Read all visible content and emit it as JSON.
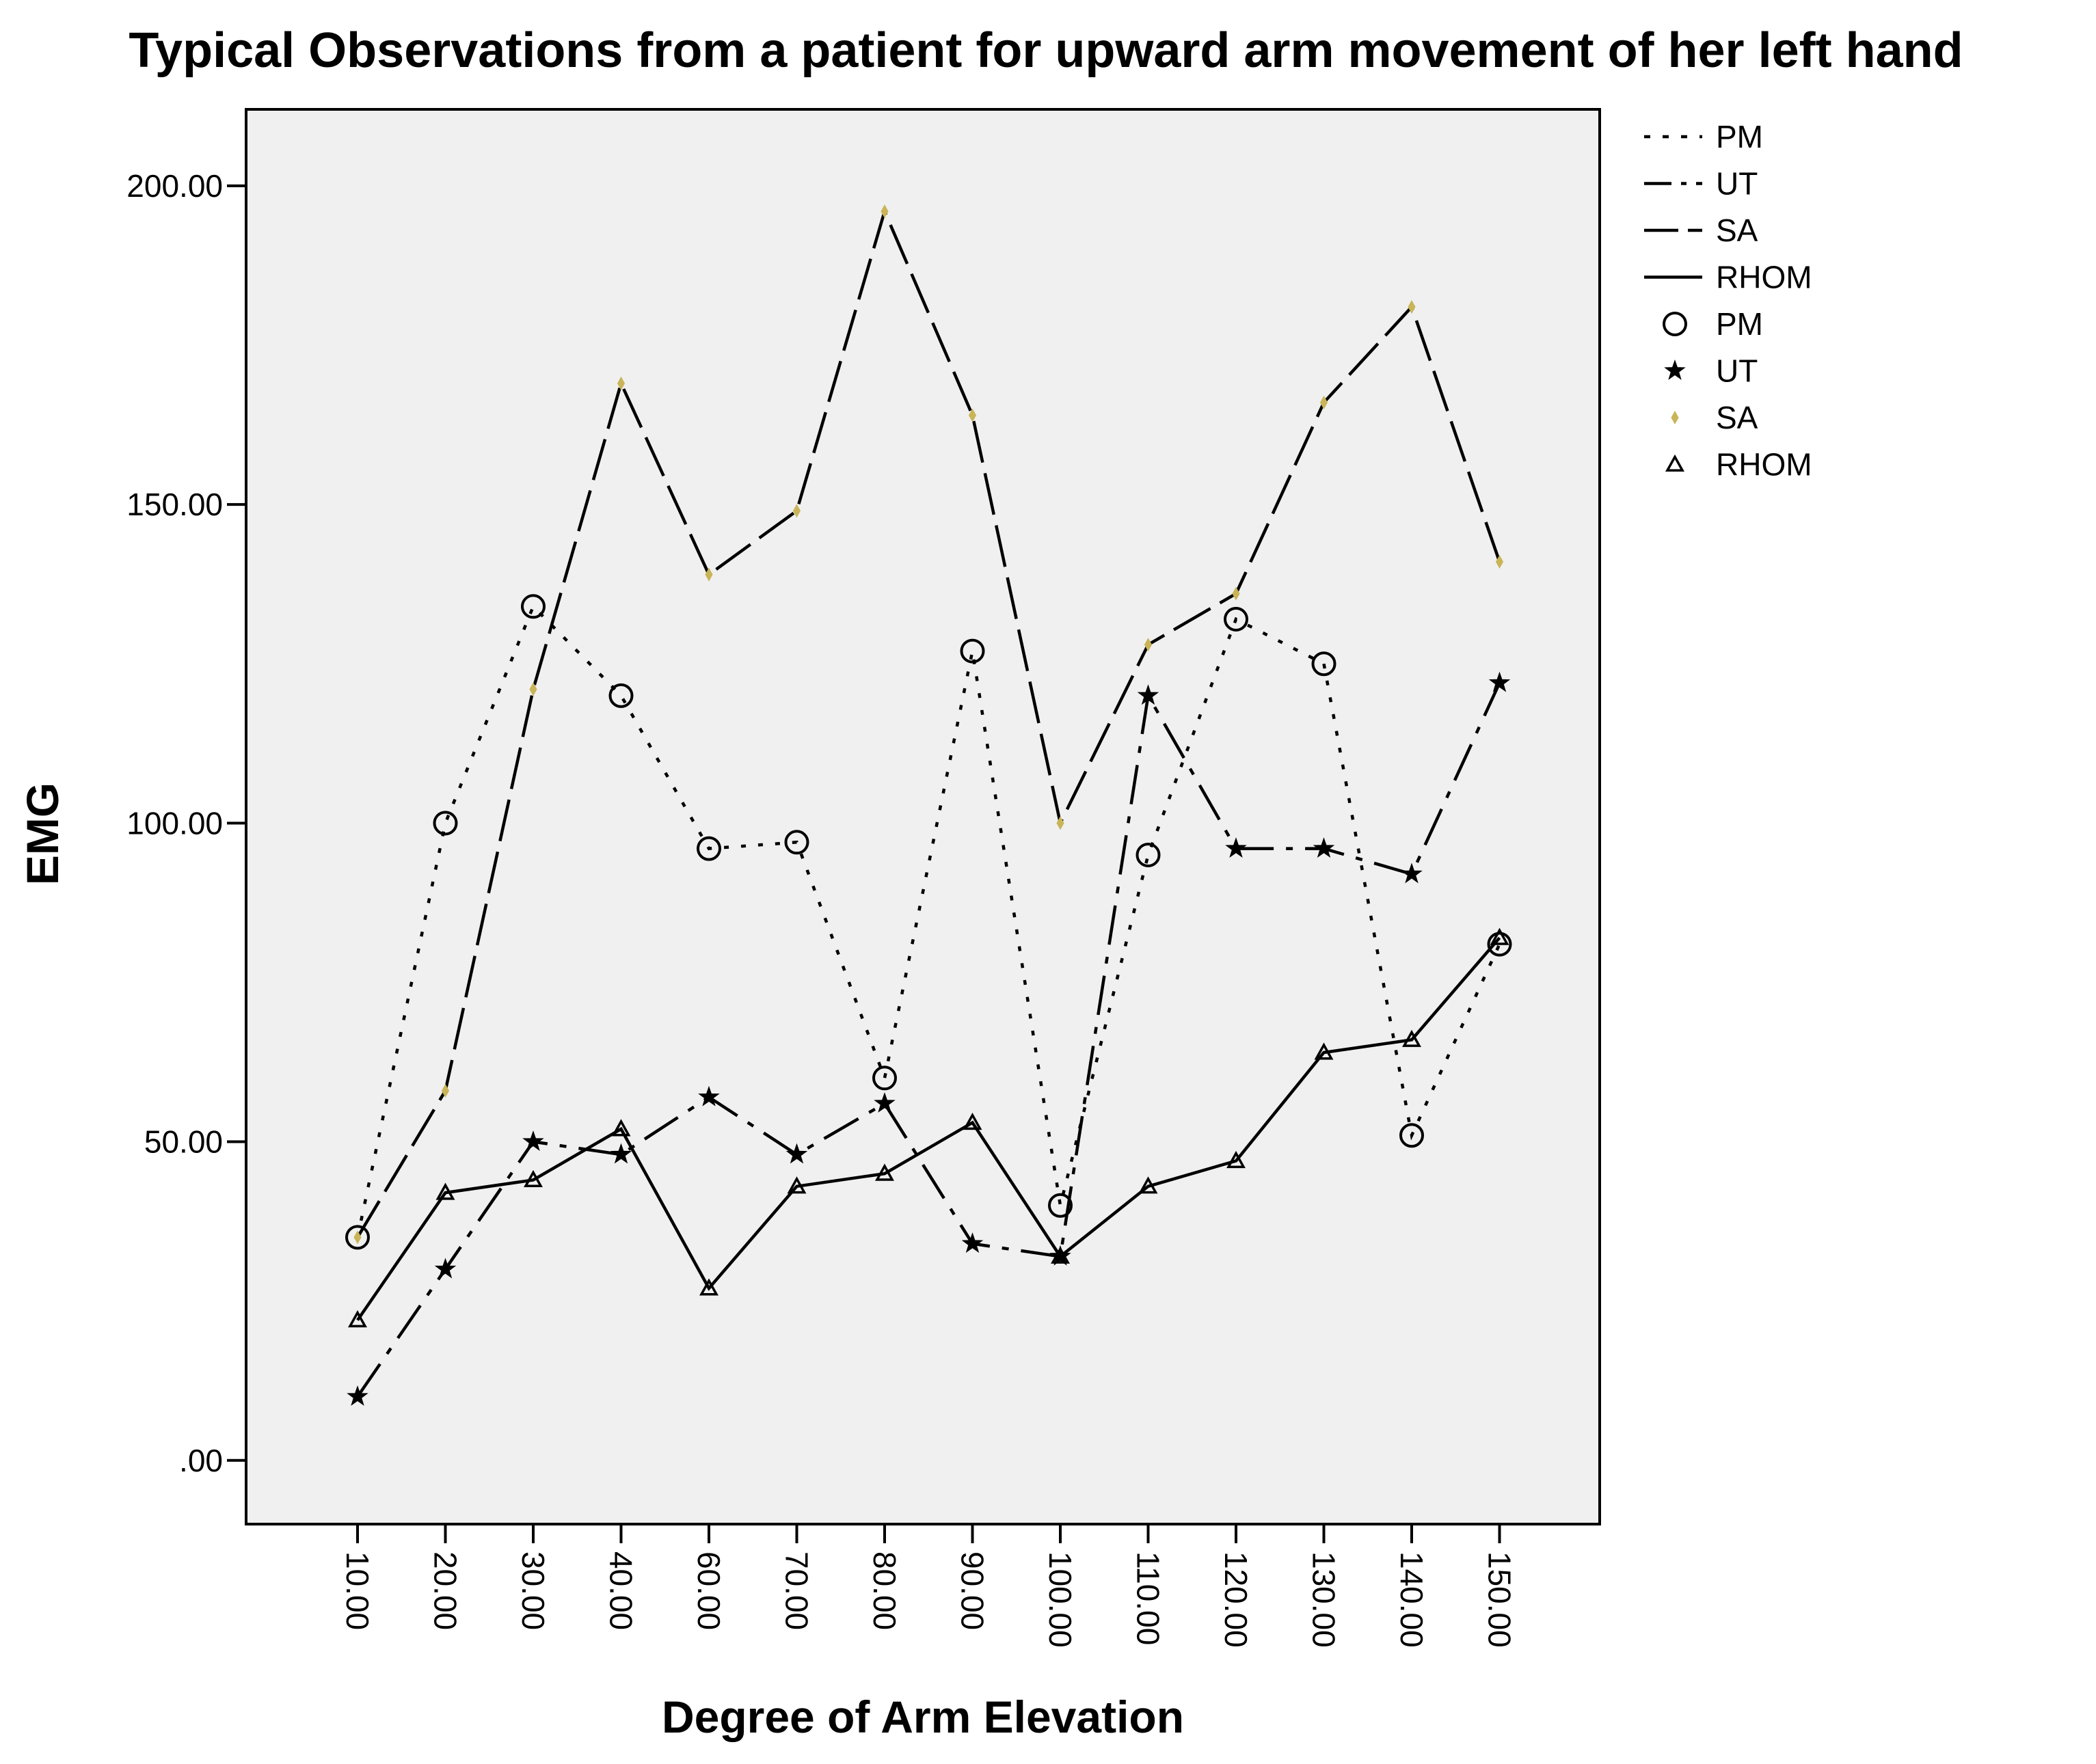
{
  "chart_data": {
    "type": "line",
    "title": "Typical Observations from a patient for upward arm movement of her left hand",
    "xlabel": "Degree of Arm Elevation",
    "ylabel": "EMG",
    "x": [
      "10.00",
      "20.00",
      "30.00",
      "40.00",
      "60.00",
      "70.00",
      "80.00",
      "90.00",
      "100.00",
      "110.00",
      "120.00",
      "130.00",
      "140.00",
      "150.00"
    ],
    "yticks": [
      ".00",
      "50.00",
      "100.00",
      "150.00",
      "200.00"
    ],
    "ylim": [
      -10,
      212
    ],
    "grid": false,
    "legend_position": "right",
    "series": [
      {
        "name": "PM",
        "marker": "circle",
        "dash": "dot",
        "color": "#000000",
        "marker_color": "#000000",
        "values": [
          35,
          100,
          134,
          120,
          96,
          97,
          60,
          127,
          40,
          95,
          132,
          125,
          51,
          81
        ]
      },
      {
        "name": "UT",
        "marker": "star",
        "dash": "dashdot",
        "color": "#000000",
        "marker_color": "#000000",
        "values": [
          10,
          30,
          50,
          48,
          57,
          48,
          56,
          34,
          32,
          120,
          96,
          96,
          92,
          122
        ]
      },
      {
        "name": "SA",
        "marker": "diamond",
        "dash": "longdash",
        "color": "#000000",
        "marker_color": "#c9b458",
        "values": [
          35,
          58,
          121,
          169,
          139,
          149,
          196,
          164,
          100,
          128,
          136,
          166,
          181,
          141
        ]
      },
      {
        "name": "RHOM",
        "marker": "triangle",
        "dash": "solid",
        "color": "#000000",
        "marker_color": "#000000",
        "values": [
          22,
          42,
          44,
          52,
          27,
          43,
          45,
          53,
          32,
          43,
          47,
          64,
          66,
          82
        ]
      }
    ]
  }
}
